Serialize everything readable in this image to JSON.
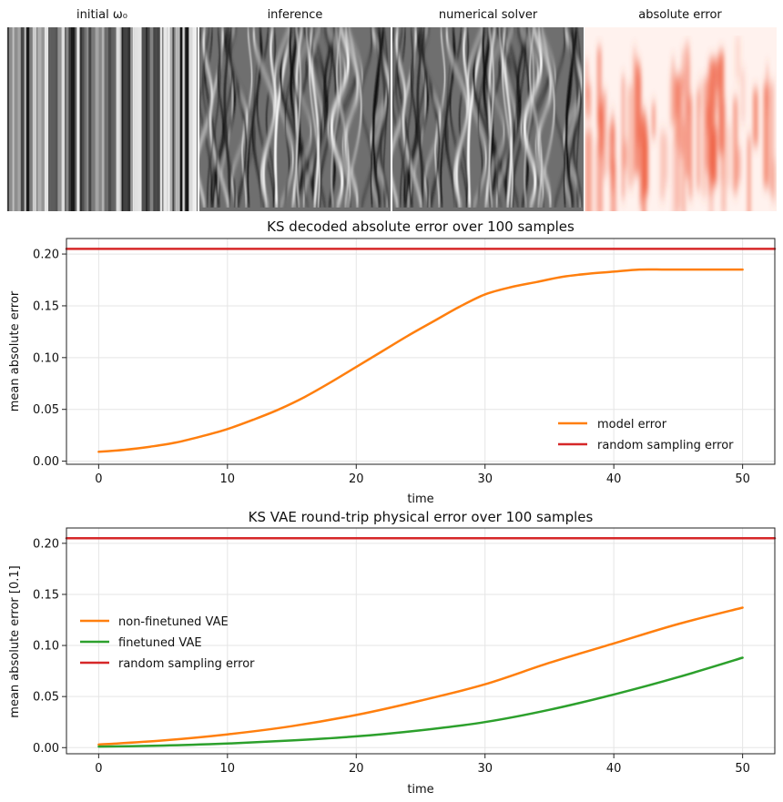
{
  "panels": {
    "titles": [
      "initial ω₀",
      "inference",
      "numerical solver",
      "absolute error"
    ]
  },
  "colors": {
    "model_error": "#ff7f0e",
    "random_error": "#d62728",
    "finetuned": "#2ca02c",
    "grid": "#e5e5e5",
    "error_map": "#ee5a3c"
  },
  "chart_data": [
    {
      "type": "line",
      "title": "KS decoded absolute error over 100 samples",
      "xlabel": "time",
      "ylabel": "mean absolute error",
      "xlim": [
        -2.5,
        52.5
      ],
      "ylim": [
        -0.003,
        0.215
      ],
      "xticks": [
        0,
        10,
        20,
        30,
        40,
        50
      ],
      "yticks": [
        0.0,
        0.05,
        0.1,
        0.15,
        0.2
      ],
      "grid": true,
      "legend": "lower right",
      "series": [
        {
          "name": "model error",
          "color": "#ff7f0e",
          "x": [
            0,
            2,
            4,
            6,
            8,
            10,
            12,
            14,
            16,
            18,
            20,
            22,
            24,
            26,
            28,
            30,
            32,
            34,
            36,
            38,
            40,
            42,
            44,
            46,
            48,
            50
          ],
          "values": [
            0.009,
            0.011,
            0.014,
            0.018,
            0.024,
            0.031,
            0.04,
            0.05,
            0.062,
            0.076,
            0.091,
            0.106,
            0.121,
            0.135,
            0.149,
            0.161,
            0.168,
            0.173,
            0.178,
            0.181,
            0.183,
            0.185,
            0.185,
            0.185,
            0.185,
            0.185
          ]
        },
        {
          "name": "random sampling error",
          "color": "#d62728",
          "x": [
            -2.5,
            52.5
          ],
          "values": [
            0.205,
            0.205
          ]
        }
      ]
    },
    {
      "type": "line",
      "title": "KS VAE round-trip physical error over 100 samples",
      "xlabel": "time",
      "ylabel": "mean absolute error [0.1]",
      "xlim": [
        -2.5,
        52.5
      ],
      "ylim": [
        -0.006,
        0.215
      ],
      "xticks": [
        0,
        10,
        20,
        30,
        40,
        50
      ],
      "yticks": [
        0.0,
        0.05,
        0.1,
        0.15,
        0.2
      ],
      "grid": true,
      "legend": "center left",
      "series": [
        {
          "name": "non-finetuned VAE",
          "color": "#ff7f0e",
          "x": [
            0,
            5,
            10,
            15,
            20,
            25,
            30,
            35,
            40,
            45,
            50
          ],
          "values": [
            0.003,
            0.007,
            0.013,
            0.021,
            0.032,
            0.046,
            0.062,
            0.083,
            0.102,
            0.121,
            0.137
          ]
        },
        {
          "name": "finetuned VAE",
          "color": "#2ca02c",
          "x": [
            0,
            5,
            10,
            15,
            20,
            25,
            30,
            35,
            40,
            45,
            50
          ],
          "values": [
            0.001,
            0.002,
            0.004,
            0.007,
            0.011,
            0.017,
            0.025,
            0.037,
            0.052,
            0.069,
            0.088
          ]
        },
        {
          "name": "random sampling error",
          "color": "#d62728",
          "x": [
            -2.5,
            52.5
          ],
          "values": [
            0.205,
            0.205
          ]
        }
      ]
    }
  ]
}
